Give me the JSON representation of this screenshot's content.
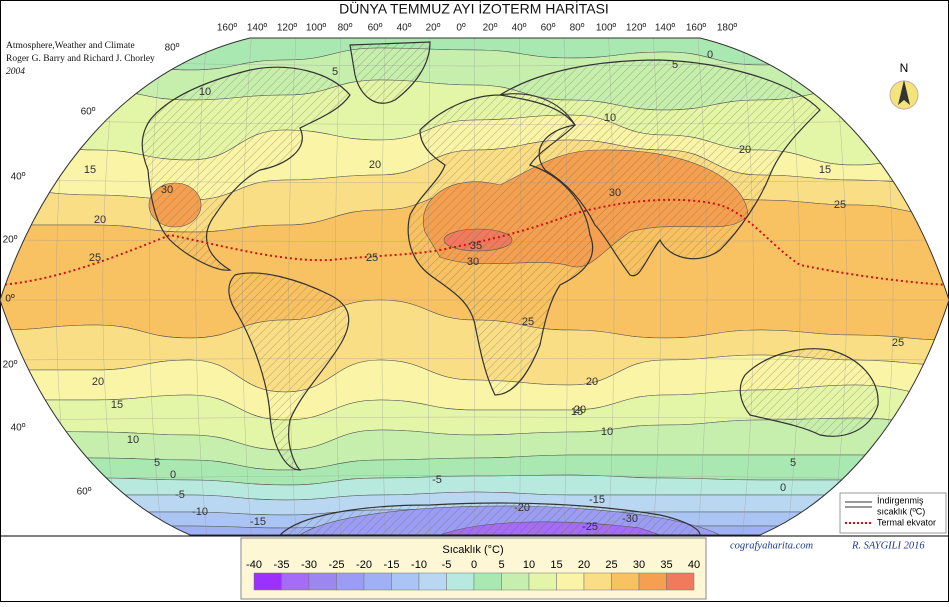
{
  "header": {
    "title": "DÜNYA TEMMUZ AYI İZOTERM HARİTASI"
  },
  "source": {
    "lines": [
      "Atmosphere,Weather and Climate",
      "Roger G. Barry and Richard J. Chorley",
      "2004"
    ]
  },
  "north": "N",
  "longitude_labels": [
    "160º",
    "140º",
    "120º",
    "100º",
    "80º",
    "60º",
    "40º",
    "20º",
    "0º",
    "20º",
    "40º",
    "60º",
    "80º",
    "100º",
    "120º",
    "140º",
    "160º",
    "180º"
  ],
  "latitude_labels": [
    "80º",
    "60º",
    "40º",
    "20º",
    "0º",
    "20º",
    "40º",
    "60º"
  ],
  "isotherm_labels": [
    0,
    5,
    5,
    10,
    10,
    15,
    15,
    20,
    20,
    20,
    25,
    25,
    25,
    25,
    30,
    30,
    30,
    35,
    20,
    20,
    15,
    15,
    10,
    10,
    5,
    5,
    0,
    0,
    -5,
    -5,
    -10,
    -15,
    -15,
    -20,
    -25,
    -30,
    20,
    25
  ],
  "legend": {
    "reduced_line1": "İndirgenmiş",
    "reduced_line2": "sıcaklık (ºC)",
    "thermal_equator": "Termal ekvator"
  },
  "credit": {
    "site": "cografyaharita.com",
    "author": "R. SAYGILI 2016"
  },
  "scale": {
    "title": "Sıcaklık (°C)",
    "ticks": [
      -40,
      -35,
      -30,
      -25,
      -20,
      -15,
      -10,
      -5,
      0,
      5,
      10,
      15,
      20,
      25,
      30,
      35,
      40
    ],
    "colors": [
      "#9b30ff",
      "#a46cf7",
      "#9c86f2",
      "#9b9cf3",
      "#9fb0f4",
      "#aac4f3",
      "#b9d7f1",
      "#b7e9de",
      "#a9e9b1",
      "#c6efae",
      "#e3f5a6",
      "#f9f4a6",
      "#f9de86",
      "#f8c162",
      "#f4a050",
      "#ef7a5c"
    ]
  }
}
